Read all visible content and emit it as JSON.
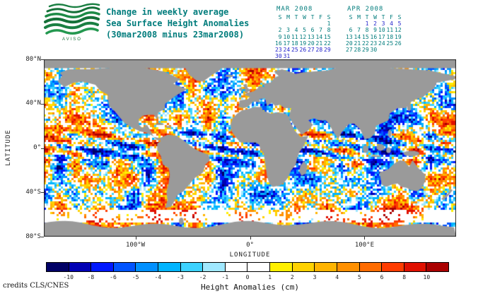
{
  "header": {
    "logo_text": "AVISO",
    "title_line1": "Change in weekly average",
    "title_line2": "Sea Surface Height Anomalies",
    "title_line3": "(30mar2008 minus 23mar2008)"
  },
  "calendars": [
    {
      "title": "MAR 2008",
      "day_headers": [
        "S",
        "M",
        "T",
        "W",
        "T",
        "F",
        "S"
      ],
      "weeks": [
        [
          "",
          "",
          "",
          "",
          "",
          "",
          "1"
        ],
        [
          "2",
          "3",
          "4",
          "5",
          "6",
          "7",
          "8"
        ],
        [
          "9",
          "10",
          "11",
          "12",
          "13",
          "14",
          "15"
        ],
        [
          "16",
          "17",
          "18",
          "19",
          "20",
          "21",
          "22"
        ],
        [
          "23",
          "24",
          "25",
          "26",
          "27",
          "28",
          "29"
        ],
        [
          "30",
          "31",
          "",
          "",
          "",
          "",
          ""
        ]
      ],
      "highlighted": [
        "23",
        "24",
        "25",
        "26",
        "27",
        "28",
        "29",
        "30",
        "31"
      ]
    },
    {
      "title": "APR 2008",
      "day_headers": [
        "S",
        "M",
        "T",
        "W",
        "T",
        "F",
        "S"
      ],
      "weeks": [
        [
          "",
          "",
          "1",
          "2",
          "3",
          "4",
          "5"
        ],
        [
          "6",
          "7",
          "8",
          "9",
          "10",
          "11",
          "12"
        ],
        [
          "13",
          "14",
          "15",
          "16",
          "17",
          "18",
          "19"
        ],
        [
          "20",
          "21",
          "22",
          "23",
          "24",
          "25",
          "26"
        ],
        [
          "27",
          "28",
          "29",
          "30",
          "",
          "",
          ""
        ]
      ],
      "highlighted": [
        "1",
        "2",
        "3",
        "4",
        "5"
      ]
    }
  ],
  "map": {
    "ylabel": "LATITUDE",
    "xlabel": "LONGITUDE",
    "lat_ticks": [
      "80°N",
      "40°N",
      "0°",
      "40°S",
      "80°S"
    ],
    "lon_ticks": [
      {
        "label": "100°W",
        "lon": -100
      },
      {
        "label": "0°",
        "lon": 0
      },
      {
        "label": "100°E",
        "lon": 100
      }
    ],
    "lat_range": [
      -80,
      80
    ],
    "lon_range": [
      -180,
      180
    ]
  },
  "colorbar": {
    "caption": "Height Anomalies (cm)",
    "labels": [
      "-10",
      "-8",
      "-6",
      "-5",
      "-4",
      "-3",
      "-2",
      "-1",
      "0",
      "1",
      "2",
      "3",
      "4",
      "5",
      "6",
      "8",
      "10"
    ],
    "thresholds": [
      -10,
      -8,
      -6,
      -5,
      -4,
      -3,
      -2,
      -1,
      0,
      1,
      2,
      3,
      4,
      5,
      6,
      8,
      10
    ],
    "colors": [
      "#000066",
      "#0000b4",
      "#0018ff",
      "#0054ff",
      "#0090ff",
      "#00b4ff",
      "#3cd2ff",
      "#a0e8ff",
      "#ffffff",
      "#ffffff",
      "#fff000",
      "#ffd200",
      "#ffb400",
      "#ff9000",
      "#ff6c00",
      "#ff3c00",
      "#e01000",
      "#aa0000"
    ]
  },
  "credits": "credits CLS/CNES",
  "colors": {
    "teal": "#007c7c",
    "calendar_highlight": "#2222cc",
    "land": "#9a9a9a",
    "axis_text": "#222222",
    "logo_green": "#157038"
  }
}
